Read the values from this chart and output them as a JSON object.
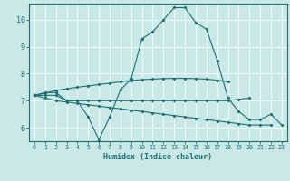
{
  "title": "",
  "xlabel": "Humidex (Indice chaleur)",
  "ylabel": "",
  "background_color": "#cbe8e8",
  "grid_color": "#f0fafa",
  "line_color": "#1a7070",
  "xlim": [
    -0.5,
    23.5
  ],
  "ylim": [
    5.5,
    10.6
  ],
  "yticks": [
    6,
    7,
    8,
    9,
    10
  ],
  "xticks": [
    0,
    1,
    2,
    3,
    4,
    5,
    6,
    7,
    8,
    9,
    10,
    11,
    12,
    13,
    14,
    15,
    16,
    17,
    18,
    19,
    20,
    21,
    22,
    23
  ],
  "series": [
    [
      7.2,
      7.3,
      7.3,
      7.0,
      7.0,
      6.4,
      5.55,
      6.4,
      7.4,
      7.8,
      9.3,
      9.55,
      10.0,
      10.45,
      10.45,
      9.9,
      9.65,
      8.5,
      7.1,
      6.6,
      6.3,
      6.3,
      6.5,
      6.1
    ],
    [
      7.2,
      7.2,
      7.2,
      7.0,
      7.0,
      7.0,
      7.0,
      7.0,
      7.0,
      7.0,
      7.0,
      7.0,
      7.0,
      7.0,
      7.0,
      7.0,
      7.0,
      7.0,
      7.0,
      7.05,
      7.1,
      null,
      null,
      null
    ],
    [
      7.2,
      7.28,
      7.38,
      7.44,
      7.5,
      7.55,
      7.6,
      7.65,
      7.7,
      7.75,
      7.78,
      7.8,
      7.82,
      7.83,
      7.83,
      7.82,
      7.8,
      7.76,
      7.7,
      null,
      null,
      null,
      null,
      null
    ],
    [
      7.2,
      7.1,
      7.0,
      6.95,
      6.9,
      6.85,
      6.8,
      6.75,
      6.7,
      6.65,
      6.6,
      6.55,
      6.5,
      6.45,
      6.4,
      6.35,
      6.3,
      6.25,
      6.2,
      6.15,
      6.1,
      6.1,
      6.1,
      null
    ]
  ]
}
